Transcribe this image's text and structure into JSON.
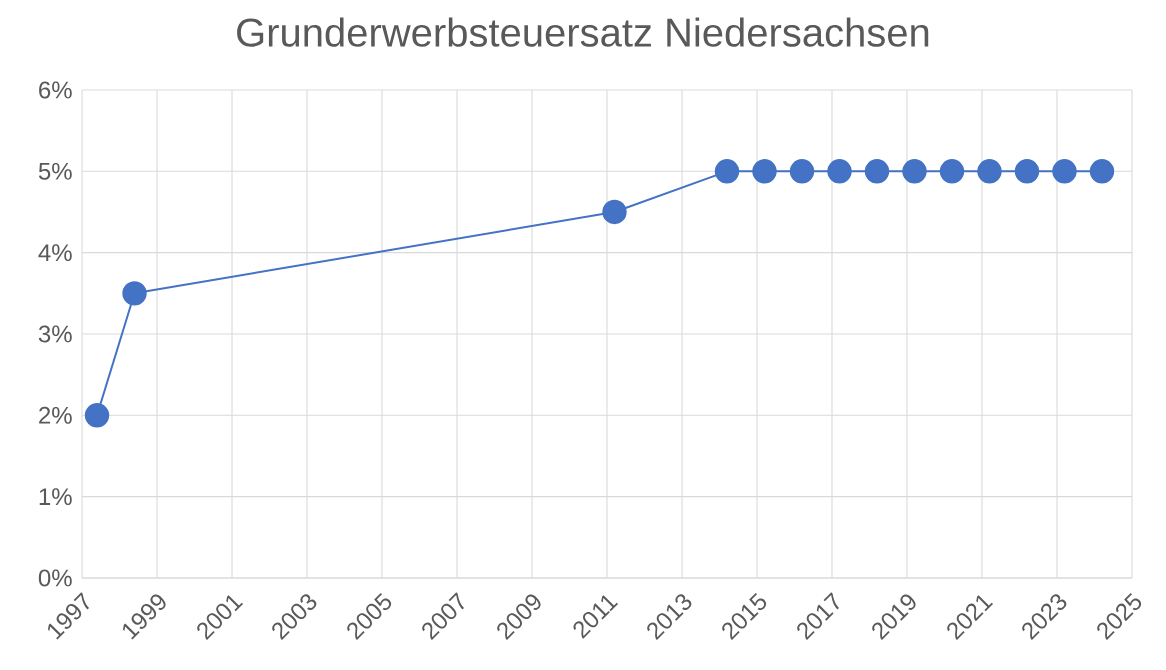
{
  "chart_data": {
    "type": "line",
    "title": "Grunderwerbsteuersatz Niedersachsen",
    "x": [
      1997.4,
      1998.4,
      2011.2,
      2014.2,
      2015.2,
      2016.2,
      2017.2,
      2018.2,
      2019.2,
      2020.2,
      2021.2,
      2022.2,
      2023.2,
      2024.2
    ],
    "series": [
      {
        "color": "#4472c4",
        "values": [
          2,
          3.5,
          4.5,
          5,
          5,
          5,
          5,
          5,
          5,
          5,
          5,
          5,
          5,
          5
        ]
      }
    ],
    "xlim": [
      1997,
      2025
    ],
    "xticks": [
      1997,
      1999,
      2001,
      2003,
      2005,
      2007,
      2009,
      2011,
      2013,
      2015,
      2017,
      2019,
      2021,
      2023,
      2025
    ],
    "ylim": [
      0,
      6
    ],
    "yticks": [
      {
        "value": 0,
        "label": "0%"
      },
      {
        "value": 1,
        "label": "1%"
      },
      {
        "value": 2,
        "label": "2%"
      },
      {
        "value": 3,
        "label": "3%"
      },
      {
        "value": 4,
        "label": "4%"
      },
      {
        "value": 5,
        "label": "5%"
      },
      {
        "value": 6,
        "label": "6%"
      }
    ],
    "grid": true,
    "legend": false,
    "marker": "circle",
    "line_style": "solid"
  }
}
